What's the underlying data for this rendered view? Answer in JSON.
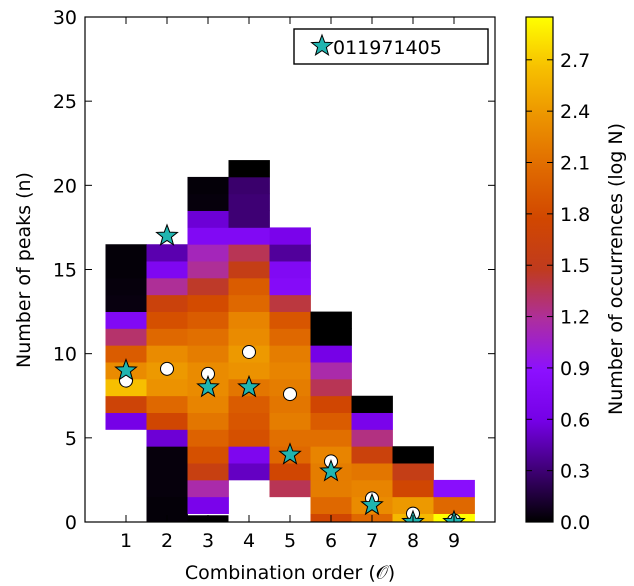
{
  "chart_data": {
    "type": "heatmap",
    "xlabel": "Combination order (𝒪)",
    "ylabel": "Number of peaks (n)",
    "x_ticks": [
      "1",
      "2",
      "3",
      "4",
      "5",
      "6",
      "7",
      "8",
      "9"
    ],
    "y_ticks": [
      "0",
      "5",
      "10",
      "15",
      "20",
      "25",
      "30"
    ],
    "xlim": [
      0,
      10
    ],
    "ylim": [
      0,
      30
    ],
    "colorbar": {
      "label": "Number of occurrences (log N)",
      "ticks": [
        "0.0",
        "0.3",
        "0.6",
        "0.9",
        "1.2",
        "1.5",
        "1.8",
        "2.1",
        "2.4",
        "2.7"
      ],
      "range": [
        0.0,
        2.95
      ],
      "colormap": "gnuplot"
    },
    "legend": {
      "position": "top-right",
      "entries": [
        {
          "label": "011971405",
          "marker": "star",
          "color": "#20b5b0"
        }
      ]
    },
    "cells": [
      {
        "x": 1,
        "n": 6,
        "v": 0.6
      },
      {
        "x": 1,
        "n": 7,
        "v": 1.7
      },
      {
        "x": 1,
        "n": 8,
        "v": 2.65
      },
      {
        "x": 1,
        "n": 9,
        "v": 2.3
      },
      {
        "x": 1,
        "n": 10,
        "v": 1.95
      },
      {
        "x": 1,
        "n": 11,
        "v": 1.3
      },
      {
        "x": 1,
        "n": 12,
        "v": 0.75
      },
      {
        "x": 1,
        "n": 13,
        "v": 0.04
      },
      {
        "x": 1,
        "n": 14,
        "v": 0.03
      },
      {
        "x": 1,
        "n": 15,
        "v": 0.02
      },
      {
        "x": 1,
        "n": 16,
        "v": 0.02
      },
      {
        "x": 2,
        "n": 0,
        "v": 0.02
      },
      {
        "x": 2,
        "n": 1,
        "v": 0.02
      },
      {
        "x": 2,
        "n": 2,
        "v": 0.03
      },
      {
        "x": 2,
        "n": 3,
        "v": 0.03
      },
      {
        "x": 2,
        "n": 4,
        "v": 0.03
      },
      {
        "x": 2,
        "n": 5,
        "v": 0.55
      },
      {
        "x": 2,
        "n": 6,
        "v": 1.75
      },
      {
        "x": 2,
        "n": 7,
        "v": 2.05
      },
      {
        "x": 2,
        "n": 8,
        "v": 2.35
      },
      {
        "x": 2,
        "n": 9,
        "v": 2.4
      },
      {
        "x": 2,
        "n": 10,
        "v": 2.3
      },
      {
        "x": 2,
        "n": 11,
        "v": 2.05
      },
      {
        "x": 2,
        "n": 12,
        "v": 1.85
      },
      {
        "x": 2,
        "n": 13,
        "v": 1.65
      },
      {
        "x": 2,
        "n": 14,
        "v": 1.2
      },
      {
        "x": 2,
        "n": 15,
        "v": 0.72
      },
      {
        "x": 2,
        "n": 16,
        "v": 0.45
      },
      {
        "x": 3,
        "n": 1,
        "v": 0.65
      },
      {
        "x": 3,
        "n": 2,
        "v": 1.15
      },
      {
        "x": 3,
        "n": 3,
        "v": 1.6
      },
      {
        "x": 3,
        "n": 4,
        "v": 1.85
      },
      {
        "x": 3,
        "n": 5,
        "v": 2.0
      },
      {
        "x": 3,
        "n": 6,
        "v": 2.15
      },
      {
        "x": 3,
        "n": 7,
        "v": 2.25
      },
      {
        "x": 3,
        "n": 8,
        "v": 2.3
      },
      {
        "x": 3,
        "n": 9,
        "v": 2.3
      },
      {
        "x": 3,
        "n": 10,
        "v": 2.2
      },
      {
        "x": 3,
        "n": 11,
        "v": 2.1
      },
      {
        "x": 3,
        "n": 12,
        "v": 1.95
      },
      {
        "x": 3,
        "n": 13,
        "v": 1.8
      },
      {
        "x": 3,
        "n": 14,
        "v": 1.45
      },
      {
        "x": 3,
        "n": 15,
        "v": 1.2
      },
      {
        "x": 3,
        "n": 16,
        "v": 1.1
      },
      {
        "x": 3,
        "n": 17,
        "v": 0.75
      },
      {
        "x": 3,
        "n": 18,
        "v": 0.55
      },
      {
        "x": 3,
        "n": 19,
        "v": 0.03
      },
      {
        "x": 3,
        "n": 20,
        "v": 0.02
      },
      {
        "x": 4,
        "n": 3,
        "v": 0.5
      },
      {
        "x": 4,
        "n": 4,
        "v": 0.7
      },
      {
        "x": 4,
        "n": 5,
        "v": 1.85
      },
      {
        "x": 4,
        "n": 6,
        "v": 1.9
      },
      {
        "x": 4,
        "n": 7,
        "v": 1.95
      },
      {
        "x": 4,
        "n": 8,
        "v": 2.15
      },
      {
        "x": 4,
        "n": 9,
        "v": 2.35
      },
      {
        "x": 4,
        "n": 10,
        "v": 2.4
      },
      {
        "x": 4,
        "n": 11,
        "v": 2.3
      },
      {
        "x": 4,
        "n": 12,
        "v": 2.25
      },
      {
        "x": 4,
        "n": 13,
        "v": 2.05
      },
      {
        "x": 4,
        "n": 14,
        "v": 1.95
      },
      {
        "x": 4,
        "n": 15,
        "v": 1.55
      },
      {
        "x": 4,
        "n": 16,
        "v": 1.35
      },
      {
        "x": 4,
        "n": 17,
        "v": 0.75
      },
      {
        "x": 4,
        "n": 18,
        "v": 0.3
      },
      {
        "x": 4,
        "n": 19,
        "v": 0.3
      },
      {
        "x": 4,
        "n": 20,
        "v": 0.28
      },
      {
        "x": 4,
        "n": 21,
        "v": 0.0
      },
      {
        "x": 5,
        "n": 2,
        "v": 1.35
      },
      {
        "x": 5,
        "n": 3,
        "v": 1.75
      },
      {
        "x": 5,
        "n": 4,
        "v": 2.05
      },
      {
        "x": 5,
        "n": 5,
        "v": 2.1
      },
      {
        "x": 5,
        "n": 6,
        "v": 2.2
      },
      {
        "x": 5,
        "n": 7,
        "v": 2.15
      },
      {
        "x": 5,
        "n": 8,
        "v": 2.2
      },
      {
        "x": 5,
        "n": 9,
        "v": 2.25
      },
      {
        "x": 5,
        "n": 10,
        "v": 2.2
      },
      {
        "x": 5,
        "n": 11,
        "v": 2.05
      },
      {
        "x": 5,
        "n": 12,
        "v": 1.9
      },
      {
        "x": 5,
        "n": 13,
        "v": 1.4
      },
      {
        "x": 5,
        "n": 14,
        "v": 0.8
      },
      {
        "x": 5,
        "n": 15,
        "v": 0.75
      },
      {
        "x": 5,
        "n": 16,
        "v": 0.4
      },
      {
        "x": 5,
        "n": 17,
        "v": 0.65
      },
      {
        "x": 6,
        "n": 0,
        "v": 1.75
      },
      {
        "x": 6,
        "n": 1,
        "v": 2.05
      },
      {
        "x": 6,
        "n": 2,
        "v": 2.2
      },
      {
        "x": 6,
        "n": 3,
        "v": 2.2
      },
      {
        "x": 6,
        "n": 4,
        "v": 2.25
      },
      {
        "x": 6,
        "n": 5,
        "v": 2.1
      },
      {
        "x": 6,
        "n": 6,
        "v": 1.95
      },
      {
        "x": 6,
        "n": 7,
        "v": 1.75
      },
      {
        "x": 6,
        "n": 8,
        "v": 1.35
      },
      {
        "x": 6,
        "n": 9,
        "v": 1.15
      },
      {
        "x": 6,
        "n": 10,
        "v": 0.6
      },
      {
        "x": 6,
        "n": 11,
        "v": 0.0
      },
      {
        "x": 6,
        "n": 12,
        "v": 0.0
      },
      {
        "x": 7,
        "n": 0,
        "v": 2.05
      },
      {
        "x": 7,
        "n": 1,
        "v": 2.3
      },
      {
        "x": 7,
        "n": 2,
        "v": 2.25
      },
      {
        "x": 7,
        "n": 3,
        "v": 2.15
      },
      {
        "x": 7,
        "n": 4,
        "v": 1.65
      },
      {
        "x": 7,
        "n": 5,
        "v": 1.25
      },
      {
        "x": 7,
        "n": 6,
        "v": 0.65
      },
      {
        "x": 7,
        "n": 7,
        "v": 0.0
      },
      {
        "x": 8,
        "n": 0,
        "v": 2.6
      },
      {
        "x": 8,
        "n": 1,
        "v": 2.4
      },
      {
        "x": 8,
        "n": 2,
        "v": 1.75
      },
      {
        "x": 8,
        "n": 3,
        "v": 1.55
      },
      {
        "x": 8,
        "n": 4,
        "v": 0.0
      },
      {
        "x": 9,
        "n": 0,
        "v": 2.95
      },
      {
        "x": 9,
        "n": 1,
        "v": 2.05
      },
      {
        "x": 9,
        "n": 2,
        "v": 0.85
      }
    ],
    "overflow_cells": [
      {
        "x": 3,
        "y0": -0.5,
        "y1": 0.4,
        "v": 0.0
      }
    ],
    "circles": [
      {
        "x": 1,
        "y": 8.4
      },
      {
        "x": 2,
        "y": 9.1
      },
      {
        "x": 3,
        "y": 8.8
      },
      {
        "x": 4,
        "y": 10.1
      },
      {
        "x": 5,
        "y": 7.6
      },
      {
        "x": 6,
        "y": 3.6
      },
      {
        "x": 7,
        "y": 1.4
      },
      {
        "x": 8,
        "y": 0.5
      },
      {
        "x": 9,
        "y": 0.1
      }
    ],
    "stars": [
      {
        "x": 1,
        "y": 9
      },
      {
        "x": 2,
        "y": 17
      },
      {
        "x": 3,
        "y": 8
      },
      {
        "x": 4,
        "y": 8
      },
      {
        "x": 5,
        "y": 4
      },
      {
        "x": 6,
        "y": 3
      },
      {
        "x": 7,
        "y": 1
      },
      {
        "x": 8,
        "y": 0
      },
      {
        "x": 9,
        "y": 0
      }
    ]
  }
}
